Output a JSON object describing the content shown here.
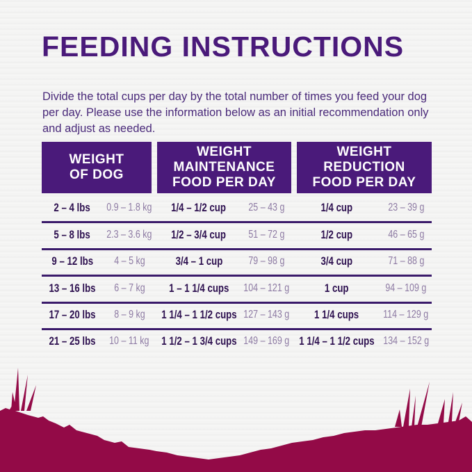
{
  "title": "FEEDING INSTRUCTIONS",
  "intro": "Divide the total cups per day by the total number of times you feed your dog per day. Please use the information below as an initial recommendation only and adjust as needed.",
  "headers": [
    "WEIGHT OF DOG",
    "WEIGHT MAINTENANCE FOOD PER DAY",
    "WEIGHT REDUCTION FOOD PER DAY"
  ],
  "rows": [
    {
      "lbs": "2 – 4 lbs",
      "kg": "0.9 – 1.8 kg",
      "maint_cups": "1/4 – 1/2 cup",
      "maint_g": "25 – 43 g",
      "red_cups": "1/4 cup",
      "red_g": "23 – 39 g"
    },
    {
      "lbs": "5 – 8 lbs",
      "kg": "2.3 – 3.6 kg",
      "maint_cups": "1/2 – 3/4 cup",
      "maint_g": "51 – 72 g",
      "red_cups": "1/2 cup",
      "red_g": "46 – 65 g"
    },
    {
      "lbs": "9 – 12 lbs",
      "kg": "4 – 5 kg",
      "maint_cups": "3/4 – 1 cup",
      "maint_g": "79 – 98 g",
      "red_cups": "3/4 cup",
      "red_g": "71 – 88 g"
    },
    {
      "lbs": "13 – 16 lbs",
      "kg": "6 – 7 kg",
      "maint_cups": "1 – 1 1/4 cups",
      "maint_g": "104 – 121 g",
      "red_cups": "1 cup",
      "red_g": "94 – 109 g"
    },
    {
      "lbs": "17 – 20 lbs",
      "kg": "8 – 9 kg",
      "maint_cups": "1 1/4 – 1 1/2 cups",
      "maint_g": "127 – 143 g",
      "red_cups": "1 1/4 cups",
      "red_g": "114 – 129 g"
    },
    {
      "lbs": "21 – 25 lbs",
      "kg": "10 – 11 kg",
      "maint_cups": "1 1/2 – 1 3/4 cups",
      "maint_g": "149 – 169 g",
      "red_cups": "1 1/4 – 1 1/2 cups",
      "red_g": "134 – 152 g"
    }
  ],
  "colors": {
    "primary": "#4a1a7a",
    "grass": "#930a47"
  }
}
